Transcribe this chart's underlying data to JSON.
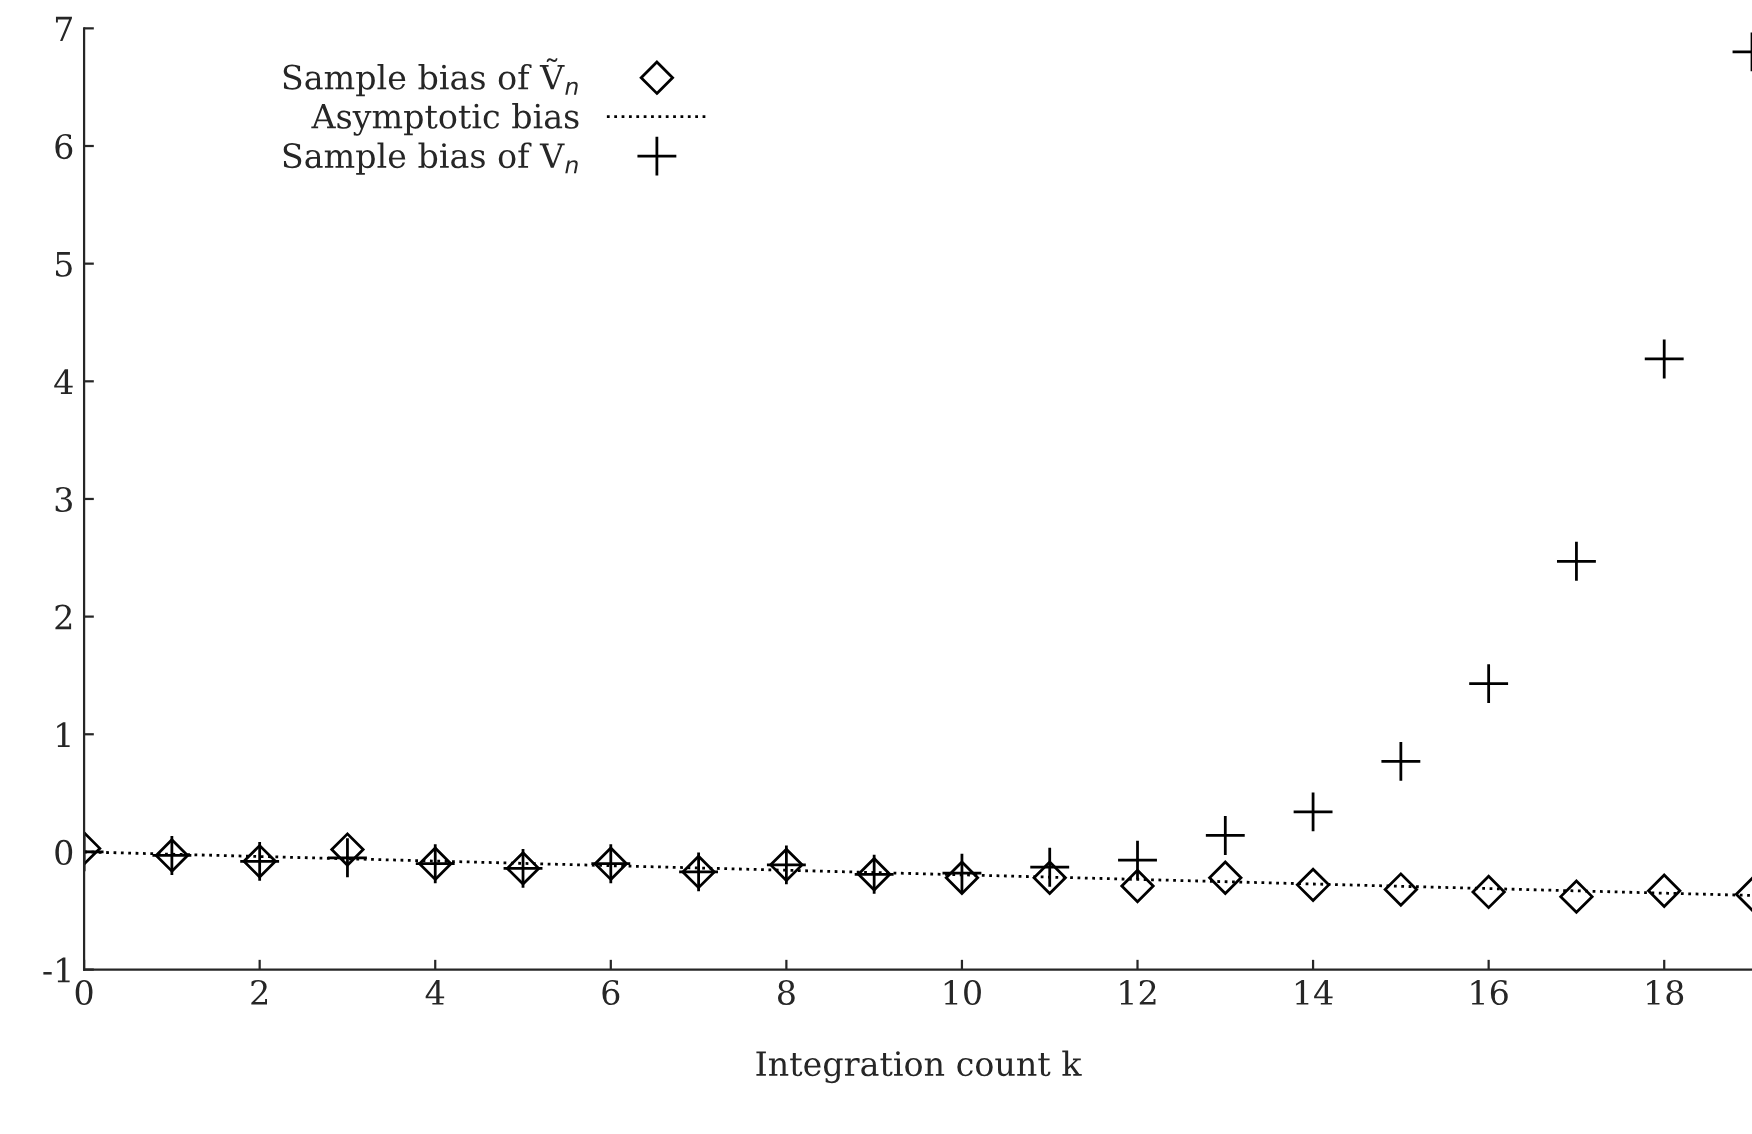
{
  "chart_data": {
    "type": "scatter",
    "xlabel": "Integration count k",
    "x": [
      0,
      1,
      2,
      3,
      4,
      5,
      6,
      7,
      8,
      9,
      10,
      11,
      12,
      13,
      14,
      15,
      16,
      17,
      18,
      19
    ],
    "series": [
      {
        "name": "Sample bias of Ṽ$_{n}$",
        "color": "#000000",
        "marker": "diamond",
        "values": [
          0.03,
          -0.03,
          -0.08,
          0.02,
          -0.1,
          -0.14,
          -0.1,
          -0.17,
          -0.11,
          -0.19,
          -0.22,
          -0.22,
          -0.29,
          -0.22,
          -0.28,
          -0.32,
          -0.34,
          -0.38,
          -0.33,
          -0.36
        ]
      },
      {
        "name": "Asymptotic bias",
        "type": "line",
        "color": "#000000",
        "line_style": "dotted",
        "marker": "none",
        "x": [
          0,
          19
        ],
        "values": [
          0,
          -0.37
        ]
      },
      {
        "name": "Sample bias of V$_{n}$",
        "color": "#000000",
        "marker": "cross",
        "values": [
          0.0,
          -0.03,
          -0.08,
          -0.05,
          -0.1,
          -0.14,
          -0.1,
          -0.17,
          -0.11,
          -0.19,
          -0.18,
          -0.13,
          -0.07,
          0.14,
          0.34,
          0.77,
          1.43,
          2.47,
          4.19,
          6.8
        ]
      }
    ],
    "xlim": [
      0,
      19
    ],
    "xticks": [
      0,
      2,
      4,
      6,
      8,
      10,
      12,
      14,
      16,
      18
    ],
    "ylim": [
      -1,
      7
    ],
    "yticks": [
      -1,
      0,
      1,
      2,
      3,
      4,
      5,
      6,
      7
    ],
    "grid": false,
    "legend": "top left"
  }
}
